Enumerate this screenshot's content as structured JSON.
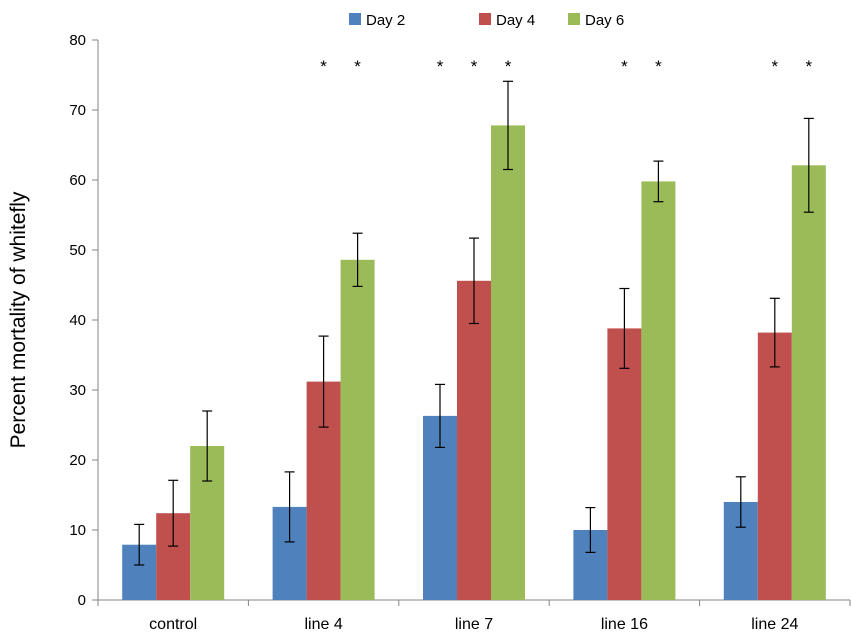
{
  "chart_data": {
    "type": "bar",
    "title": "",
    "xlabel": "",
    "ylabel": "Percent  mortality of whitefly",
    "ylim": [
      0,
      80
    ],
    "yticks": [
      0,
      10,
      20,
      30,
      40,
      50,
      60,
      70,
      80
    ],
    "categories": [
      "control",
      "line 4",
      "line 7",
      "line 16",
      "line 24"
    ],
    "legend_position": "top",
    "grid": false,
    "series": [
      {
        "name": "Day 2",
        "color": "#4f81bd",
        "values": [
          7.9,
          13.3,
          26.3,
          10.0,
          14.0
        ],
        "errors": [
          2.9,
          5.0,
          4.5,
          3.2,
          3.6
        ]
      },
      {
        "name": "Day 4",
        "color": "#c0504d",
        "values": [
          12.4,
          31.2,
          45.6,
          38.8,
          38.2
        ],
        "errors": [
          4.7,
          6.5,
          6.1,
          5.7,
          4.9
        ]
      },
      {
        "name": "Day 6",
        "color": "#9bbb59",
        "values": [
          22.0,
          48.6,
          67.8,
          59.8,
          62.1
        ],
        "errors": [
          5.0,
          3.8,
          6.3,
          2.9,
          6.7
        ]
      }
    ],
    "significance_marker": "*",
    "significant": [
      [
        false,
        false,
        false
      ],
      [
        false,
        true,
        true
      ],
      [
        true,
        true,
        true
      ],
      [
        false,
        true,
        true
      ],
      [
        false,
        true,
        true
      ]
    ]
  }
}
